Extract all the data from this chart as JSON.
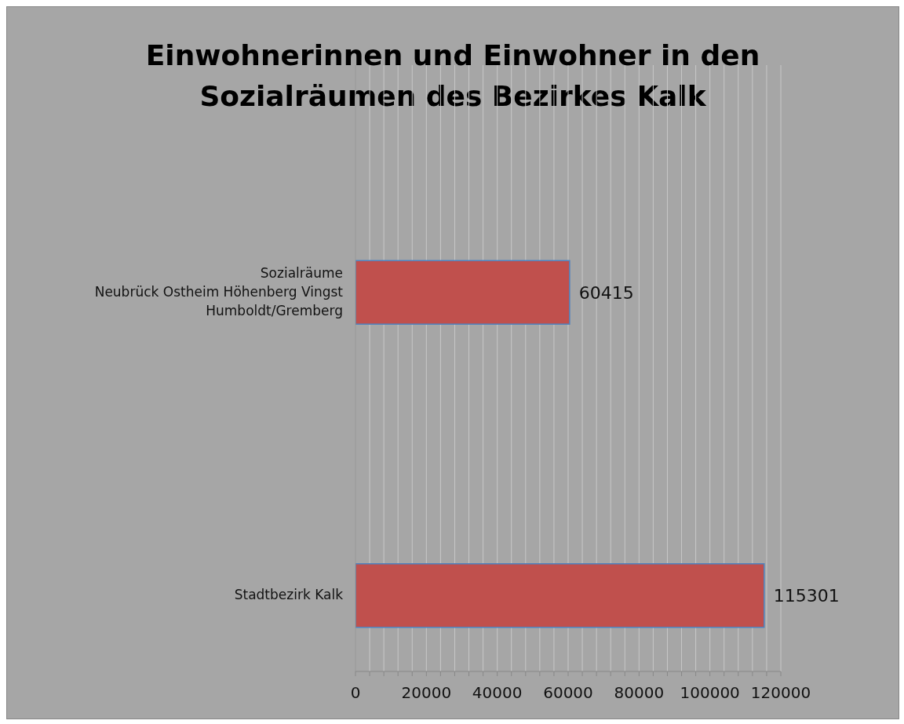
{
  "chart_data": {
    "type": "bar",
    "orientation": "horizontal",
    "title": "Einwohnerinnen und Einwohner  in den\nSozialräumen des Bezirkes Kalk",
    "categories": [
      null,
      "Sozialräume\nNeubrück Ostheim Höhenberg Vingst\nHumboldt/Gremberg",
      null,
      "Stadtbezirk Kalk"
    ],
    "values": [
      null,
      60415,
      null,
      115301
    ],
    "color": "#c0504d",
    "data_labels": true,
    "xlim": [
      0,
      120000
    ],
    "xticks": [
      0,
      {
        "value": 4000,
        "label": null
      },
      {
        "value": 8000,
        "label": null
      },
      {
        "value": 12000,
        "label": null
      },
      {
        "value": 16000,
        "label": null
      },
      20000,
      {
        "value": 24000,
        "label": null
      },
      {
        "value": 28000,
        "label": null
      },
      {
        "value": 32000,
        "label": null
      },
      {
        "value": 36000,
        "label": null
      },
      40000,
      {
        "value": 44000,
        "label": null
      },
      {
        "value": 48000,
        "label": null
      },
      {
        "value": 52000,
        "label": null
      },
      {
        "value": 56000,
        "label": null
      },
      60000,
      {
        "value": 64000,
        "label": null
      },
      {
        "value": 68000,
        "label": null
      },
      {
        "value": 72000,
        "label": null
      },
      {
        "value": 76000,
        "label": null
      },
      80000,
      {
        "value": 84000,
        "label": null
      },
      {
        "value": 88000,
        "label": null
      },
      {
        "value": 92000,
        "label": null
      },
      {
        "value": 96000,
        "label": null
      },
      100000,
      {
        "value": 104000,
        "label": null
      },
      {
        "value": 108000,
        "label": null
      },
      {
        "value": 112000,
        "label": null
      },
      {
        "value": 116000,
        "label": null
      },
      120000
    ],
    "grid": "x",
    "legend": false
  }
}
